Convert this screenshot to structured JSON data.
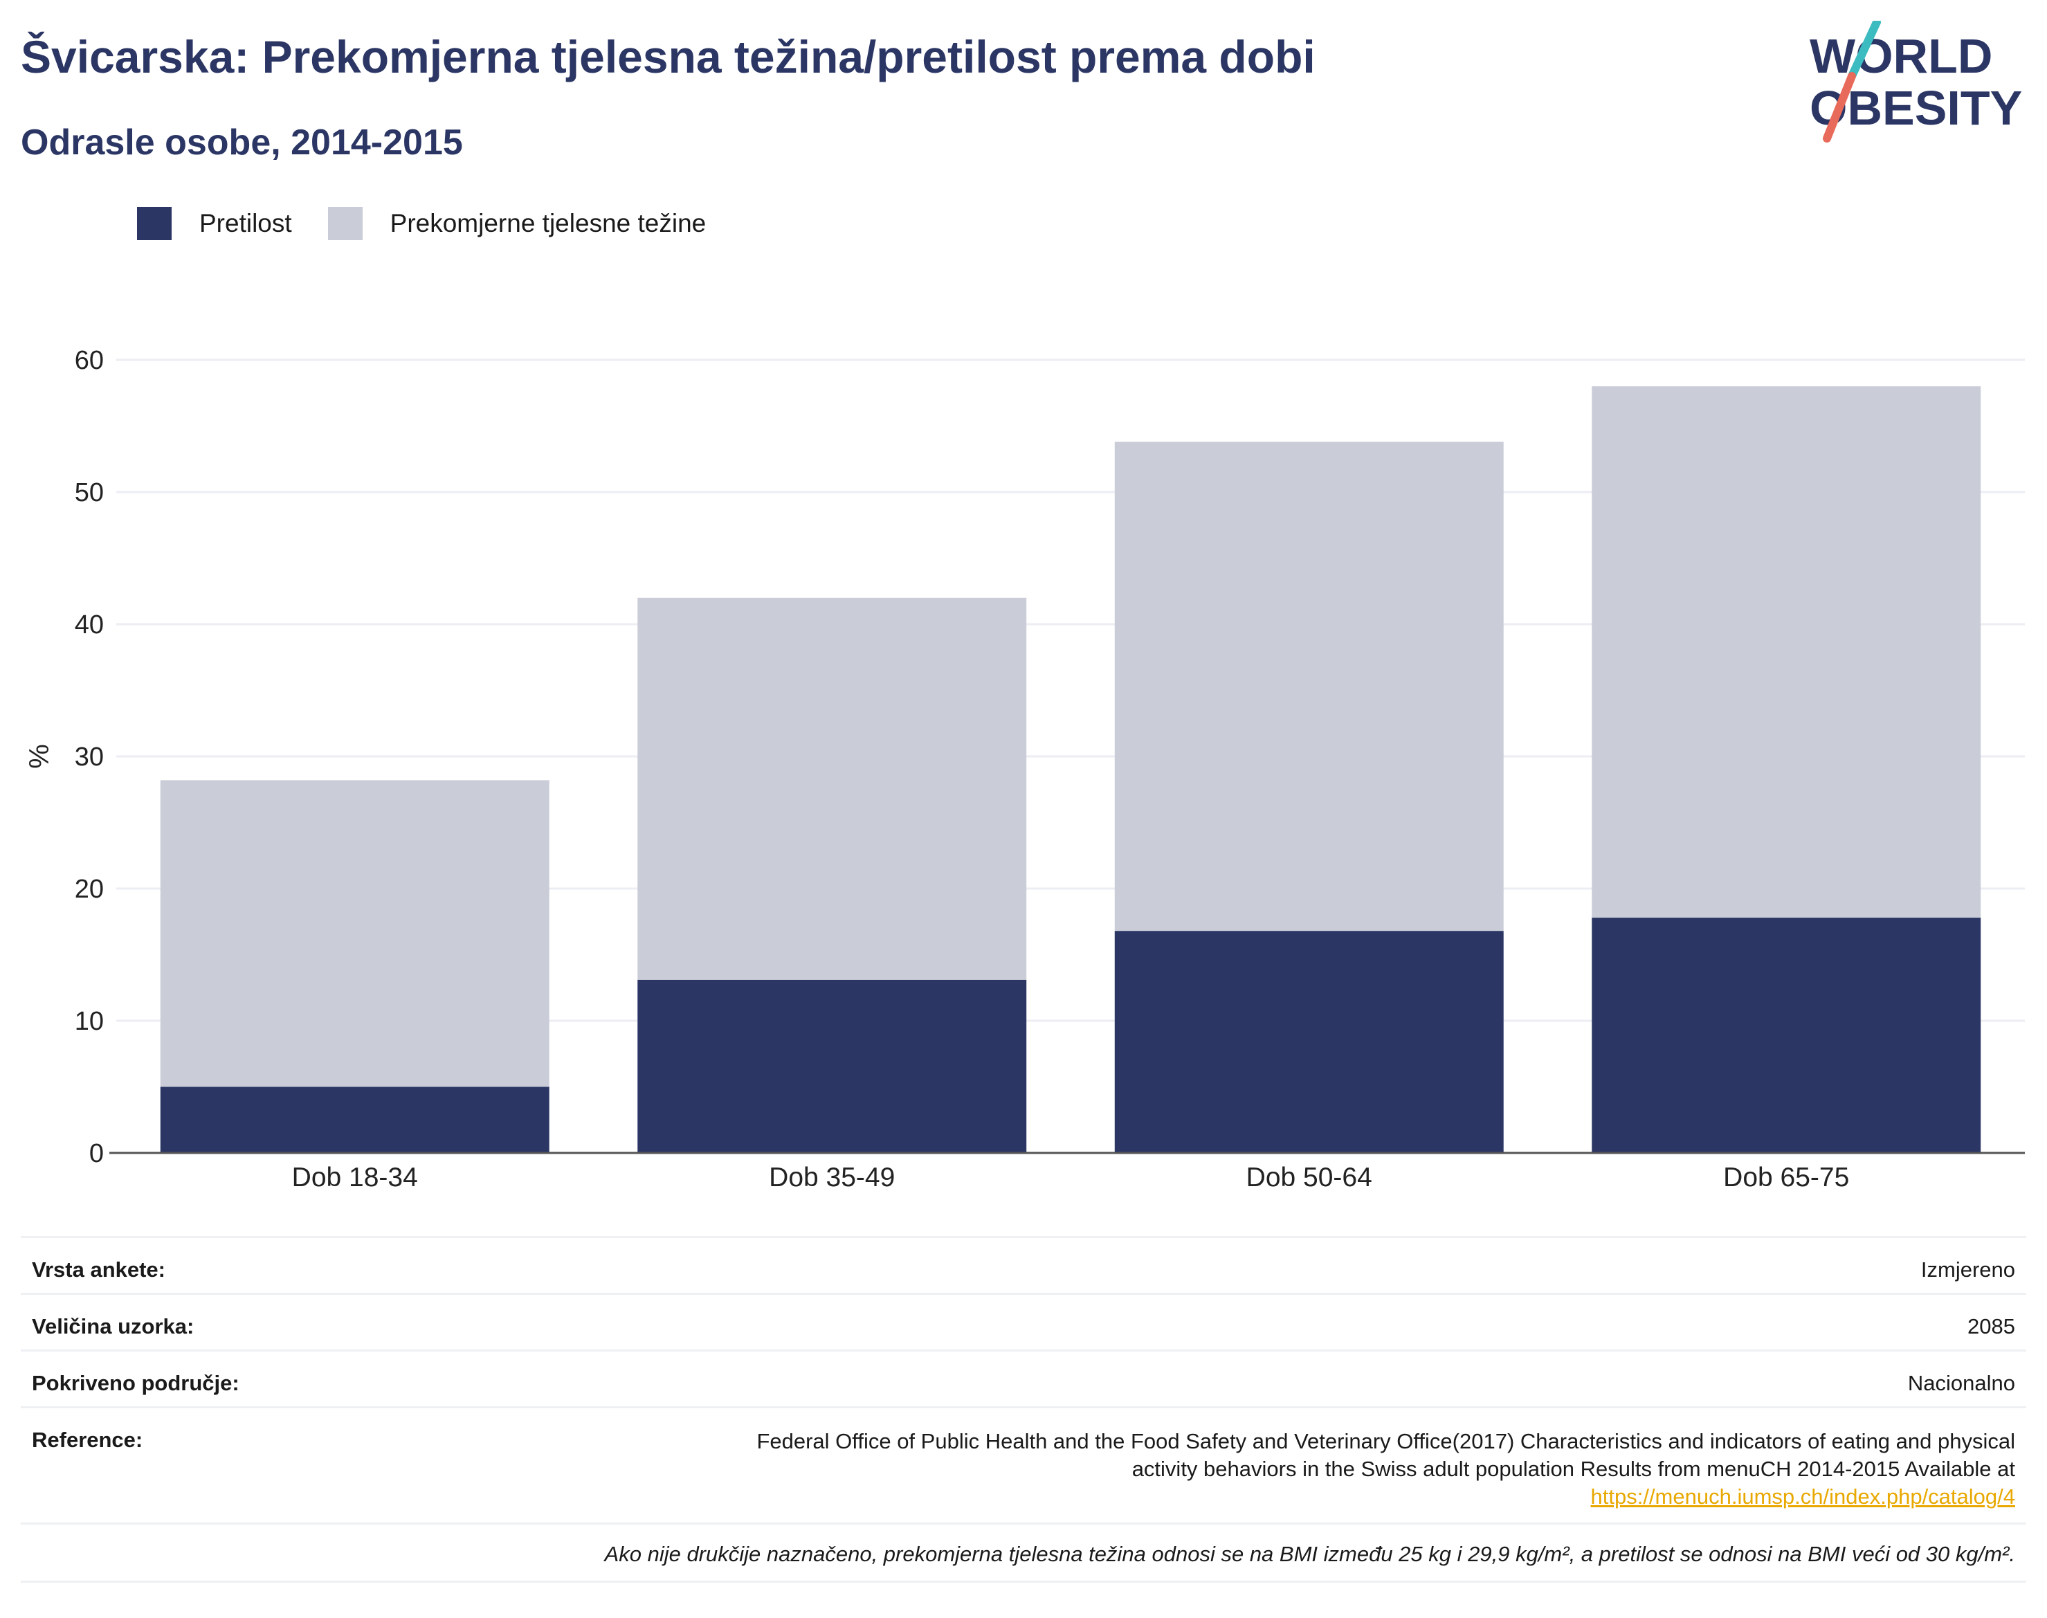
{
  "header": {
    "title": "Švicarska: Prekomjerna tjelesna težina/pretilost prema dobi",
    "subtitle": "Odrasle osobe, 2014-2015"
  },
  "logo": {
    "line1": "WORLD",
    "line2": "OBESITY"
  },
  "colors": {
    "obesity": "#2b3664",
    "overweight": "#cacdd8",
    "title": "#2b3664",
    "link": "#e8a800"
  },
  "chart_data": {
    "type": "bar",
    "stacked": true,
    "categories": [
      "Dob 18-34",
      "Dob 35-49",
      "Dob 50-64",
      "Dob 65-75"
    ],
    "series": [
      {
        "name": "Pretilost",
        "values": [
          5.0,
          13.1,
          16.8,
          17.8
        ]
      },
      {
        "name": "Prekomjerne tjelesne težine",
        "values": [
          23.2,
          28.9,
          37.0,
          40.2
        ]
      }
    ],
    "ylabel": "%",
    "ylim": [
      0,
      60
    ],
    "yticks": [
      "0",
      "10",
      "20",
      "30",
      "40",
      "50",
      "60"
    ],
    "grid": true,
    "legend_position": "top-left"
  },
  "meta": {
    "survey_type_label": "Vrsta ankete:",
    "survey_type_value": "Izmjereno",
    "sample_size_label": "Veličina uzorka:",
    "sample_size_value": "2085",
    "coverage_label": "Pokriveno područje:",
    "coverage_value": "Nacionalno",
    "reference_label": "Reference:",
    "reference_line1": "Federal Office of Public Health and the Food Safety and Veterinary Office(2017) Characteristics and indicators of eating and physical",
    "reference_line2": "activity behaviors in the Swiss adult population Results from menuCH 2014-2015 Available at",
    "reference_link": "https://menuch.iumsp.ch/index.php/catalog/4",
    "note": "Ako nije drukčije naznačeno, prekomjerna tjelesna težina odnosi se na BMI između 25 kg i 29,9 kg/m², a pretilost se odnosi na BMI veći od 30 kg/m²."
  }
}
